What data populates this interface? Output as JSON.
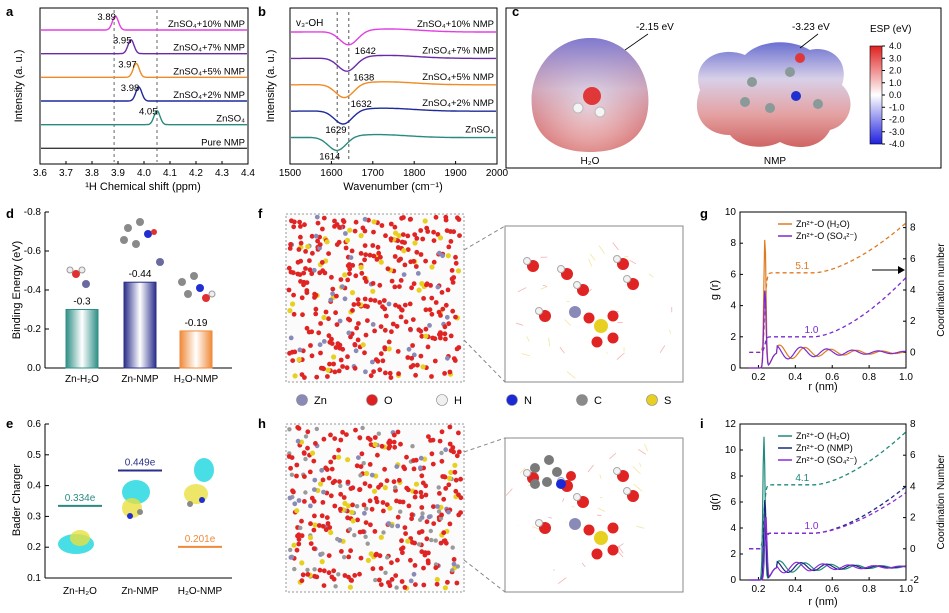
{
  "panel_letters": {
    "a": "a",
    "b": "b",
    "c": "c",
    "d": "d",
    "e": "e",
    "f": "f",
    "g": "g",
    "h": "h",
    "i": "i"
  },
  "chart_data": [
    {
      "panel": "a",
      "type": "line",
      "xlabel": "¹H Chemical shift (ppm)",
      "ylabel": "Intensity (a. u.)",
      "xlim": [
        3.6,
        4.4
      ],
      "xticks": [
        "3.6",
        "3.7",
        "3.8",
        "3.9",
        "4.0",
        "4.1",
        "4.2",
        "4.3",
        "4.4"
      ],
      "reference_lines": [
        3.885,
        4.05
      ],
      "series": [
        {
          "name": "ZnSO₄+10% NMP",
          "peak": 3.89,
          "peak_label": "3.89",
          "color": "#e040e0"
        },
        {
          "name": "ZnSO₄+7% NMP",
          "peak": 3.95,
          "peak_label": "3.95",
          "color": "#6a2aa8"
        },
        {
          "name": "ZnSO₄+5% NMP",
          "peak": 3.97,
          "peak_label": "3.97",
          "color": "#f08a24"
        },
        {
          "name": "ZnSO₄+2% NMP",
          "peak": 3.98,
          "peak_label": "3.98",
          "color": "#1f2a9a"
        },
        {
          "name": "ZnSO₄",
          "peak": 4.05,
          "peak_label": "4.05",
          "color": "#2a8a80"
        },
        {
          "name": "Pure NMP",
          "peak": null,
          "peak_label": "",
          "color": "#3a3a3a"
        }
      ]
    },
    {
      "panel": "b",
      "type": "line",
      "xlabel": "Wavenumber (cm⁻¹)",
      "ylabel": "Intensity (a. u.)",
      "annotation": "v₃-OH",
      "xlim": [
        1500,
        2000
      ],
      "xticks": [
        "1500",
        "1600",
        "1700",
        "1800",
        "1900",
        "2000"
      ],
      "reference_lines": [
        1614,
        1642
      ],
      "series": [
        {
          "name": "ZnSO₄+10% NMP",
          "peak": 1642,
          "peak_label": "1642",
          "color": "#e040e0"
        },
        {
          "name": "ZnSO₄+7% NMP",
          "peak": 1638,
          "peak_label": "1638",
          "color": "#6a2aa8"
        },
        {
          "name": "ZnSO₄+5% NMP",
          "peak": 1632,
          "peak_label": "1632",
          "color": "#f08a24"
        },
        {
          "name": "ZnSO₄+2% NMP",
          "peak": 1629,
          "peak_label": "1629",
          "color": "#1f2a9a"
        },
        {
          "name": "ZnSO₄",
          "peak": 1614,
          "peak_label": "1614",
          "color": "#2a8a80"
        }
      ]
    },
    {
      "panel": "d",
      "type": "bar",
      "ylabel": "Binding Energy (eV)",
      "ylim": [
        0,
        -0.8
      ],
      "yticks": [
        "0.0",
        "-0.2",
        "-0.4",
        "-0.6",
        "-0.8"
      ],
      "categories": [
        "Zn-H₂O",
        "Zn-NMP",
        "H₂O-NMP"
      ],
      "values": [
        -0.3,
        -0.44,
        -0.19
      ],
      "value_labels": [
        "-0.3",
        "-0.44",
        "-0.19"
      ],
      "colors": [
        "#2f8f86",
        "#2a2f8a",
        "#f08a3a"
      ]
    },
    {
      "panel": "e",
      "type": "bar",
      "ylabel": "Bader Charger",
      "ylim": [
        0.1,
        0.6
      ],
      "yticks": [
        "0.1",
        "0.2",
        "0.3",
        "0.4",
        "0.5",
        "0.6"
      ],
      "categories": [
        "Zn-H₂O",
        "Zn-NMP",
        "H₂O-NMP"
      ],
      "values": [
        0.334,
        0.449,
        0.201
      ],
      "value_labels": [
        "0.334e",
        "0.449e",
        "0.201e"
      ],
      "colors": [
        "#2a8a80",
        "#2a2f8a",
        "#f08a3a"
      ]
    },
    {
      "panel": "g",
      "type": "line",
      "xlabel": "r (nm)",
      "ylabel": "g (r)",
      "y2label": "Coordination number",
      "xlim": [
        0.1,
        1.0
      ],
      "ylim": [
        0,
        10
      ],
      "y2lim": [
        -1,
        9
      ],
      "xticks": [
        "0.2",
        "0.4",
        "0.6",
        "0.8",
        "1.0"
      ],
      "yticks": [
        "0",
        "2",
        "4",
        "6",
        "8",
        "10"
      ],
      "y2ticks": [
        "0",
        "2",
        "4",
        "6",
        "8"
      ],
      "annotations": [
        "5.1",
        "1.0"
      ],
      "series": [
        {
          "name": "Zn²⁺-O (H₂O)",
          "color": "#e07a20",
          "peak_r": 0.235,
          "peak_g": 8.3,
          "cn_plateau": 5.1,
          "cn_end": 8.3
        },
        {
          "name": "Zn²⁺-O (SO₄²⁻)",
          "color": "#7a2ad0",
          "peak_r": 0.235,
          "peak_g": 5.0,
          "cn_plateau": 1.0,
          "cn_end": 4.8
        }
      ]
    },
    {
      "panel": "i",
      "type": "line",
      "xlabel": "r (nm)",
      "ylabel": "g(r)",
      "y2label": "Coordination Number",
      "xlim": [
        0.1,
        1.0
      ],
      "ylim": [
        0,
        12
      ],
      "y2lim": [
        -2,
        8
      ],
      "xticks": [
        "0.2",
        "0.4",
        "0.6",
        "0.8",
        "1.0"
      ],
      "yticks": [
        "0",
        "2",
        "4",
        "6",
        "8",
        "10",
        "12"
      ],
      "y2ticks": [
        "-2",
        "0",
        "2",
        "4",
        "6",
        "8"
      ],
      "annotations": [
        "4.1",
        "1.0"
      ],
      "series": [
        {
          "name": "Zn²⁺-O (H₂O)",
          "color": "#1e8a7a",
          "peak_r": 0.23,
          "peak_g": 11.0,
          "cn_plateau": 4.1,
          "cn_end": 7.5
        },
        {
          "name": "Zn²⁺-O (NMP)",
          "color": "#1a2a7a",
          "peak_r": 0.235,
          "peak_g": 6.2,
          "cn_plateau": 1.0,
          "cn_end": 4.0
        },
        {
          "name": "Zn²⁺-O (SO₄²⁻)",
          "color": "#8a2ad8",
          "peak_r": 0.24,
          "peak_g": 5.0,
          "cn_plateau": 1.0,
          "cn_end": 3.6
        }
      ]
    }
  ],
  "esp_panel": {
    "h2o_energy": "-2.15 eV",
    "nmp_energy": "-3.23 eV",
    "h2o_label": "H₂O",
    "nmp_label": "NMP",
    "colorbar_title": "ESP (eV)",
    "colorbar_ticks": [
      "4.0",
      "3.0",
      "2.0",
      "1.0",
      "0.0",
      "-1.0",
      "-2.0",
      "-3.0",
      "-4.0"
    ]
  },
  "md_legend": {
    "items": [
      {
        "label": "Zn",
        "color": "#8a8ab8"
      },
      {
        "label": "O",
        "color": "#e02020"
      },
      {
        "label": "H",
        "color": "#f0f0f0"
      },
      {
        "label": "N",
        "color": "#1a28d8"
      },
      {
        "label": "C",
        "color": "#8a8a8a"
      },
      {
        "label": "S",
        "color": "#e8d020"
      }
    ]
  }
}
